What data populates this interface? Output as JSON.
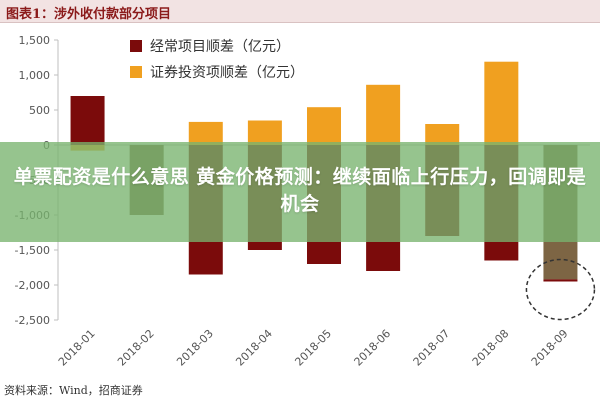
{
  "figure_title": "图表1：涉外收付款部分项目",
  "source_note": "资料来源：Wind，招商证券",
  "overlay_caption": "单票配资是什么意思 黄金价格预测：继续面临上行压力，回调即是机会",
  "colors": {
    "current_account": "#7b0b0b",
    "securities": "#f0a020",
    "overlap": "#7d6544",
    "axis": "#bfbfbf",
    "circle": "#333333"
  },
  "chart_data": {
    "type": "bar",
    "categories": [
      "2018-01",
      "2018-02",
      "2018-03",
      "2018-04",
      "2018-05",
      "2018-06",
      "2018-07",
      "2018-08",
      "2018-09"
    ],
    "series": [
      {
        "name": "经常项目顺差（亿元）",
        "values": [
          700,
          -1000,
          -1850,
          -1500,
          -1700,
          -1800,
          -1300,
          -1650,
          -1950
        ]
      },
      {
        "name": "证券投资项顺差（亿元）",
        "values": [
          -80,
          -1000,
          330,
          350,
          540,
          860,
          300,
          1190,
          -1920
        ]
      }
    ],
    "ylim": [
      -2500,
      1500
    ],
    "yticks": [
      1500,
      1000,
      500,
      0,
      -500,
      -1000,
      -1500,
      -2000,
      -2500
    ],
    "ytick_labels": [
      "1,500",
      "1,000",
      "500",
      "0",
      "-500",
      "-1,000",
      "-1,500",
      "-2,000",
      "-2,500"
    ],
    "annotation": "dashed circle around 2018-09",
    "legend_position": "top-left",
    "grid": false
  }
}
